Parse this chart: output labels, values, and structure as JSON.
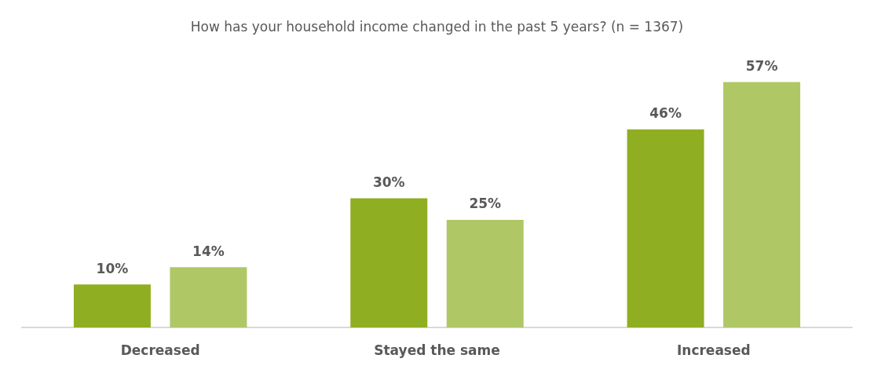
{
  "chart_data": {
    "type": "bar",
    "title": "How has your household income changed in the past 5 years? (n = 1367)",
    "categories": [
      "Decreased",
      "Stayed the same",
      "Increased"
    ],
    "series": [
      {
        "color": "#8fae22",
        "values": [
          10,
          30,
          46
        ],
        "value_labels": [
          "10%",
          "30%",
          "46%"
        ]
      },
      {
        "color": "#b0c766",
        "values": [
          14,
          25,
          57
        ],
        "value_labels": [
          "14%",
          "25%",
          "57%"
        ]
      }
    ],
    "tick_labels": "x",
    "grid": false
  }
}
